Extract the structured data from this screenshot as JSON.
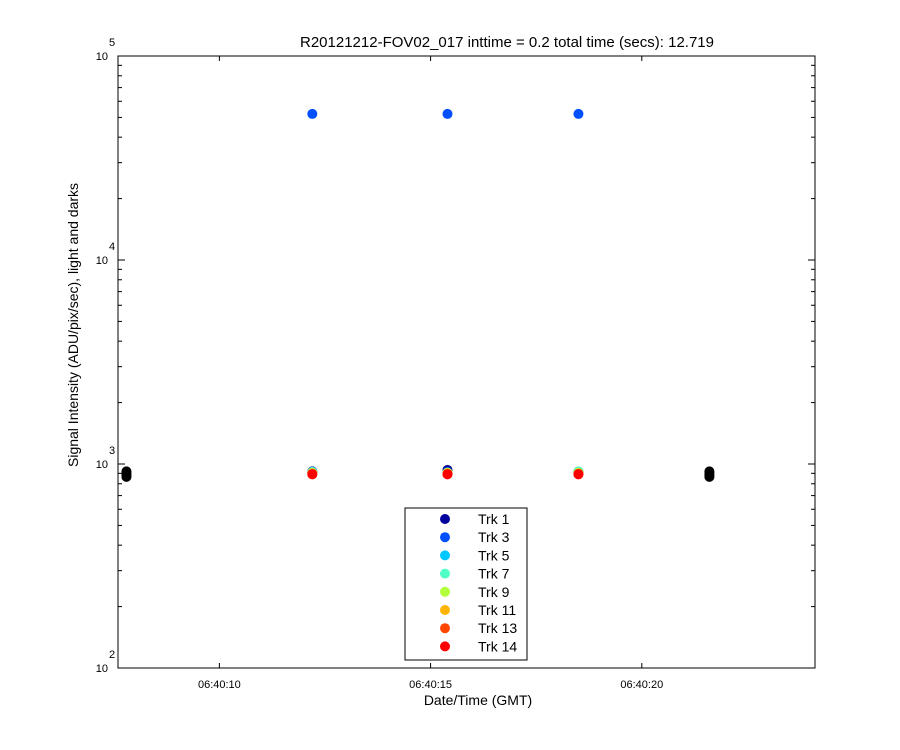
{
  "chart_data": {
    "type": "scatter",
    "title": "R20121212-FOV02_017 inttime = 0.2 total time (secs): 12.719",
    "xlabel": "Date/Time (GMT)",
    "ylabel": "Signal Intensity (ADU/pix/sec), light and darks",
    "yscale": "log",
    "xlim": [
      "06:40:07.6",
      "06:40:24.1"
    ],
    "ylim": [
      100,
      100000
    ],
    "x_ticks": [
      "06:40:10",
      "06:40:15",
      "06:40:20"
    ],
    "y_ticks": [
      {
        "value": 100,
        "base": "10",
        "exp": "2"
      },
      {
        "value": 1000,
        "base": "10",
        "exp": "3"
      },
      {
        "value": 10000,
        "base": "10",
        "exp": "4"
      },
      {
        "value": 100000,
        "base": "10",
        "exp": "5"
      }
    ],
    "legend_position": "bottom-center",
    "grid": false,
    "series": [
      {
        "name": "Trk 1",
        "color": "#00009c",
        "points": [
          [
            "06:40:12.2",
            920
          ],
          [
            "06:40:15.4",
            935
          ],
          [
            "06:40:18.5",
            915
          ]
        ]
      },
      {
        "name": "Trk 3",
        "color": "#0050ff",
        "points": [
          [
            "06:40:12.2",
            52000
          ],
          [
            "06:40:15.4",
            52000
          ],
          [
            "06:40:18.5",
            52000
          ]
        ]
      },
      {
        "name": "Trk 5",
        "color": "#00c8ff",
        "points": [
          [
            "06:40:12.2",
            915
          ],
          [
            "06:40:15.4",
            910
          ],
          [
            "06:40:18.5",
            918
          ]
        ]
      },
      {
        "name": "Trk 7",
        "color": "#50ffc8",
        "points": [
          [
            "06:40:12.2",
            912
          ],
          [
            "06:40:15.4",
            908
          ],
          [
            "06:40:18.5",
            920
          ]
        ]
      },
      {
        "name": "Trk 9",
        "color": "#b4ff3c",
        "points": [
          [
            "06:40:12.2",
            905
          ],
          [
            "06:40:15.4",
            905
          ],
          [
            "06:40:18.5",
            905
          ]
        ]
      },
      {
        "name": "Trk 11",
        "color": "#ffb400",
        "points": [
          [
            "06:40:12.2",
            900
          ],
          [
            "06:40:15.4",
            900
          ],
          [
            "06:40:18.5",
            900
          ]
        ]
      },
      {
        "name": "Trk 13",
        "color": "#ff4600",
        "points": [
          [
            "06:40:12.2",
            895
          ],
          [
            "06:40:15.4",
            895
          ],
          [
            "06:40:18.5",
            895
          ]
        ]
      },
      {
        "name": "Trk 14",
        "color": "#ff0000",
        "points": [
          [
            "06:40:12.2",
            890
          ],
          [
            "06:40:15.4",
            890
          ],
          [
            "06:40:18.5",
            890
          ]
        ]
      }
    ],
    "darks": {
      "color": "#000000",
      "points": [
        [
          "06:40:07.8",
          920
        ],
        [
          "06:40:07.8",
          900
        ],
        [
          "06:40:07.8",
          880
        ],
        [
          "06:40:07.8",
          865
        ],
        [
          "06:40:21.6",
          920
        ],
        [
          "06:40:21.6",
          900
        ],
        [
          "06:40:21.6",
          880
        ],
        [
          "06:40:21.6",
          865
        ]
      ]
    }
  }
}
